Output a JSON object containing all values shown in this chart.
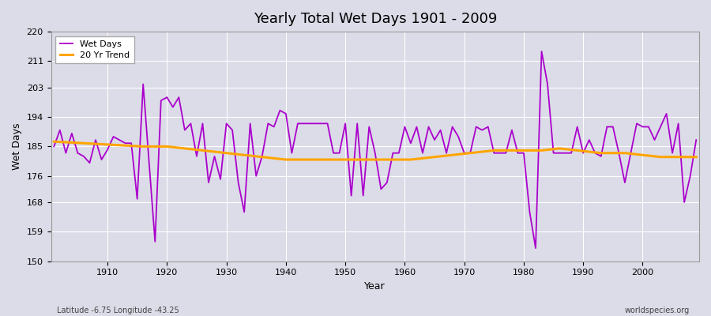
{
  "title": "Yearly Total Wet Days 1901 - 2009",
  "xlabel": "Year",
  "ylabel": "Wet Days",
  "footnote_left": "Latitude -6.75 Longitude -43.25",
  "footnote_right": "worldspecies.org",
  "wet_days_color": "#aa00cc",
  "trend_color": "#FFA500",
  "background_color": "#dcdce8",
  "ylim": [
    150,
    220
  ],
  "yticks": [
    150,
    159,
    168,
    176,
    185,
    194,
    203,
    211,
    220
  ],
  "years": [
    1901,
    1902,
    1903,
    1904,
    1905,
    1906,
    1907,
    1908,
    1909,
    1910,
    1911,
    1912,
    1913,
    1914,
    1915,
    1916,
    1917,
    1918,
    1919,
    1920,
    1921,
    1922,
    1923,
    1924,
    1925,
    1926,
    1927,
    1928,
    1929,
    1930,
    1931,
    1932,
    1933,
    1934,
    1935,
    1936,
    1937,
    1938,
    1939,
    1940,
    1941,
    1942,
    1943,
    1944,
    1945,
    1946,
    1947,
    1948,
    1949,
    1950,
    1951,
    1952,
    1953,
    1954,
    1955,
    1956,
    1957,
    1958,
    1959,
    1960,
    1961,
    1962,
    1963,
    1964,
    1965,
    1966,
    1967,
    1968,
    1969,
    1970,
    1971,
    1972,
    1973,
    1974,
    1975,
    1976,
    1977,
    1978,
    1979,
    1980,
    1981,
    1982,
    1983,
    1984,
    1985,
    1986,
    1987,
    1988,
    1989,
    1990,
    1991,
    1992,
    1993,
    1994,
    1995,
    1996,
    1997,
    1998,
    1999,
    2000,
    2001,
    2002,
    2003,
    2004,
    2005,
    2006,
    2007,
    2008,
    2009
  ],
  "wet_days": [
    185,
    190,
    183,
    189,
    183,
    182,
    180,
    187,
    181,
    184,
    188,
    187,
    186,
    186,
    169,
    204,
    180,
    156,
    199,
    200,
    197,
    200,
    190,
    192,
    182,
    192,
    174,
    182,
    175,
    192,
    190,
    174,
    165,
    192,
    176,
    182,
    192,
    191,
    196,
    195,
    183,
    192,
    192,
    192,
    192,
    192,
    192,
    183,
    183,
    192,
    170,
    192,
    170,
    191,
    183,
    172,
    174,
    183,
    183,
    191,
    186,
    191,
    183,
    191,
    187,
    190,
    183,
    191,
    188,
    183,
    183,
    191,
    190,
    191,
    183,
    183,
    183,
    190,
    183,
    183,
    165,
    154,
    214,
    204,
    183,
    183,
    183,
    183,
    191,
    183,
    187,
    183,
    182,
    191,
    191,
    183,
    174,
    183,
    192,
    191,
    191,
    187,
    191,
    195,
    183,
    192,
    168,
    176,
    187
  ],
  "trend": [
    186.5,
    186.4,
    186.3,
    186.2,
    186.1,
    186.0,
    185.9,
    185.8,
    185.7,
    185.6,
    185.5,
    185.4,
    185.3,
    185.2,
    185.1,
    185.0,
    185.0,
    185.0,
    185.0,
    185.0,
    184.8,
    184.6,
    184.4,
    184.2,
    184.0,
    183.8,
    183.6,
    183.4,
    183.2,
    183.0,
    182.8,
    182.6,
    182.4,
    182.2,
    182.0,
    181.8,
    181.6,
    181.4,
    181.2,
    181.0,
    181.0,
    181.0,
    181.0,
    181.0,
    181.0,
    181.0,
    181.0,
    181.0,
    181.0,
    181.0,
    181.0,
    181.0,
    181.0,
    181.0,
    181.0,
    181.0,
    181.0,
    181.0,
    181.0,
    181.0,
    181.0,
    181.2,
    181.4,
    181.6,
    181.8,
    182.0,
    182.2,
    182.4,
    182.6,
    182.8,
    183.0,
    183.2,
    183.4,
    183.6,
    183.8,
    183.8,
    183.8,
    183.8,
    183.8,
    183.8,
    183.8,
    183.8,
    183.8,
    184.0,
    184.2,
    184.4,
    184.2,
    184.0,
    183.8,
    183.6,
    183.4,
    183.2,
    183.0,
    183.0,
    183.0,
    183.0,
    183.0,
    182.8,
    182.6,
    182.4,
    182.2,
    182.0,
    181.8,
    181.8,
    181.8,
    181.8,
    181.8,
    181.8,
    181.8
  ]
}
